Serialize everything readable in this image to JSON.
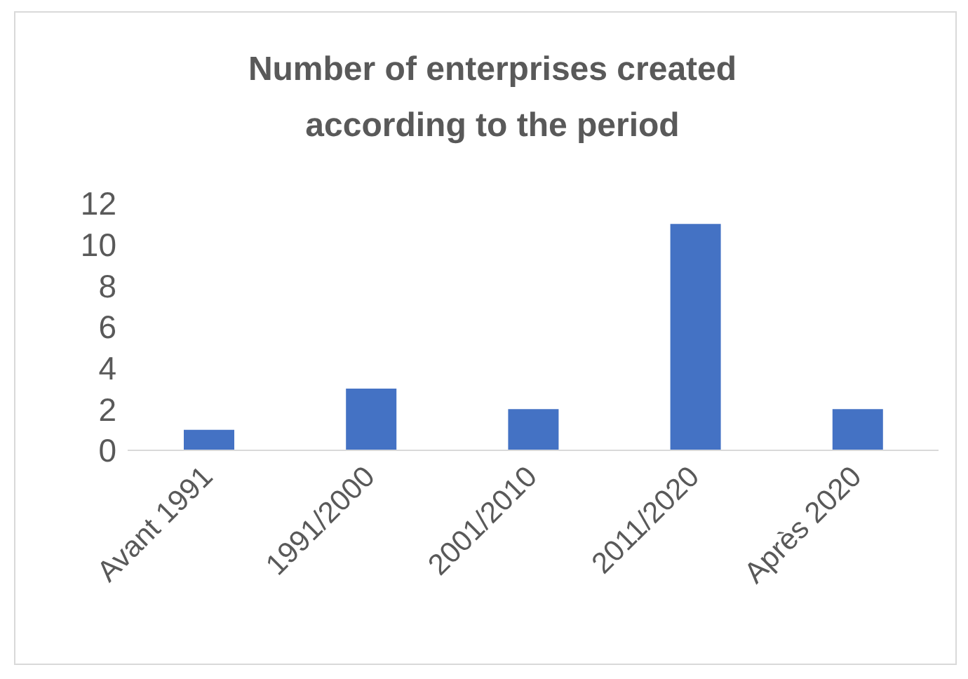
{
  "chart_data": {
    "type": "bar",
    "title": "Number of enterprises created according to the period",
    "categories": [
      "Avant 1991",
      "1991/2000",
      "2001/2010",
      "2011/2020",
      "Après 2020"
    ],
    "values": [
      1,
      3,
      2,
      11,
      2
    ],
    "color": "#4472c4",
    "ylim": [
      0,
      12
    ],
    "yticks": [
      0,
      2,
      4,
      6,
      8,
      10,
      12
    ],
    "grid": false,
    "legend": false
  }
}
